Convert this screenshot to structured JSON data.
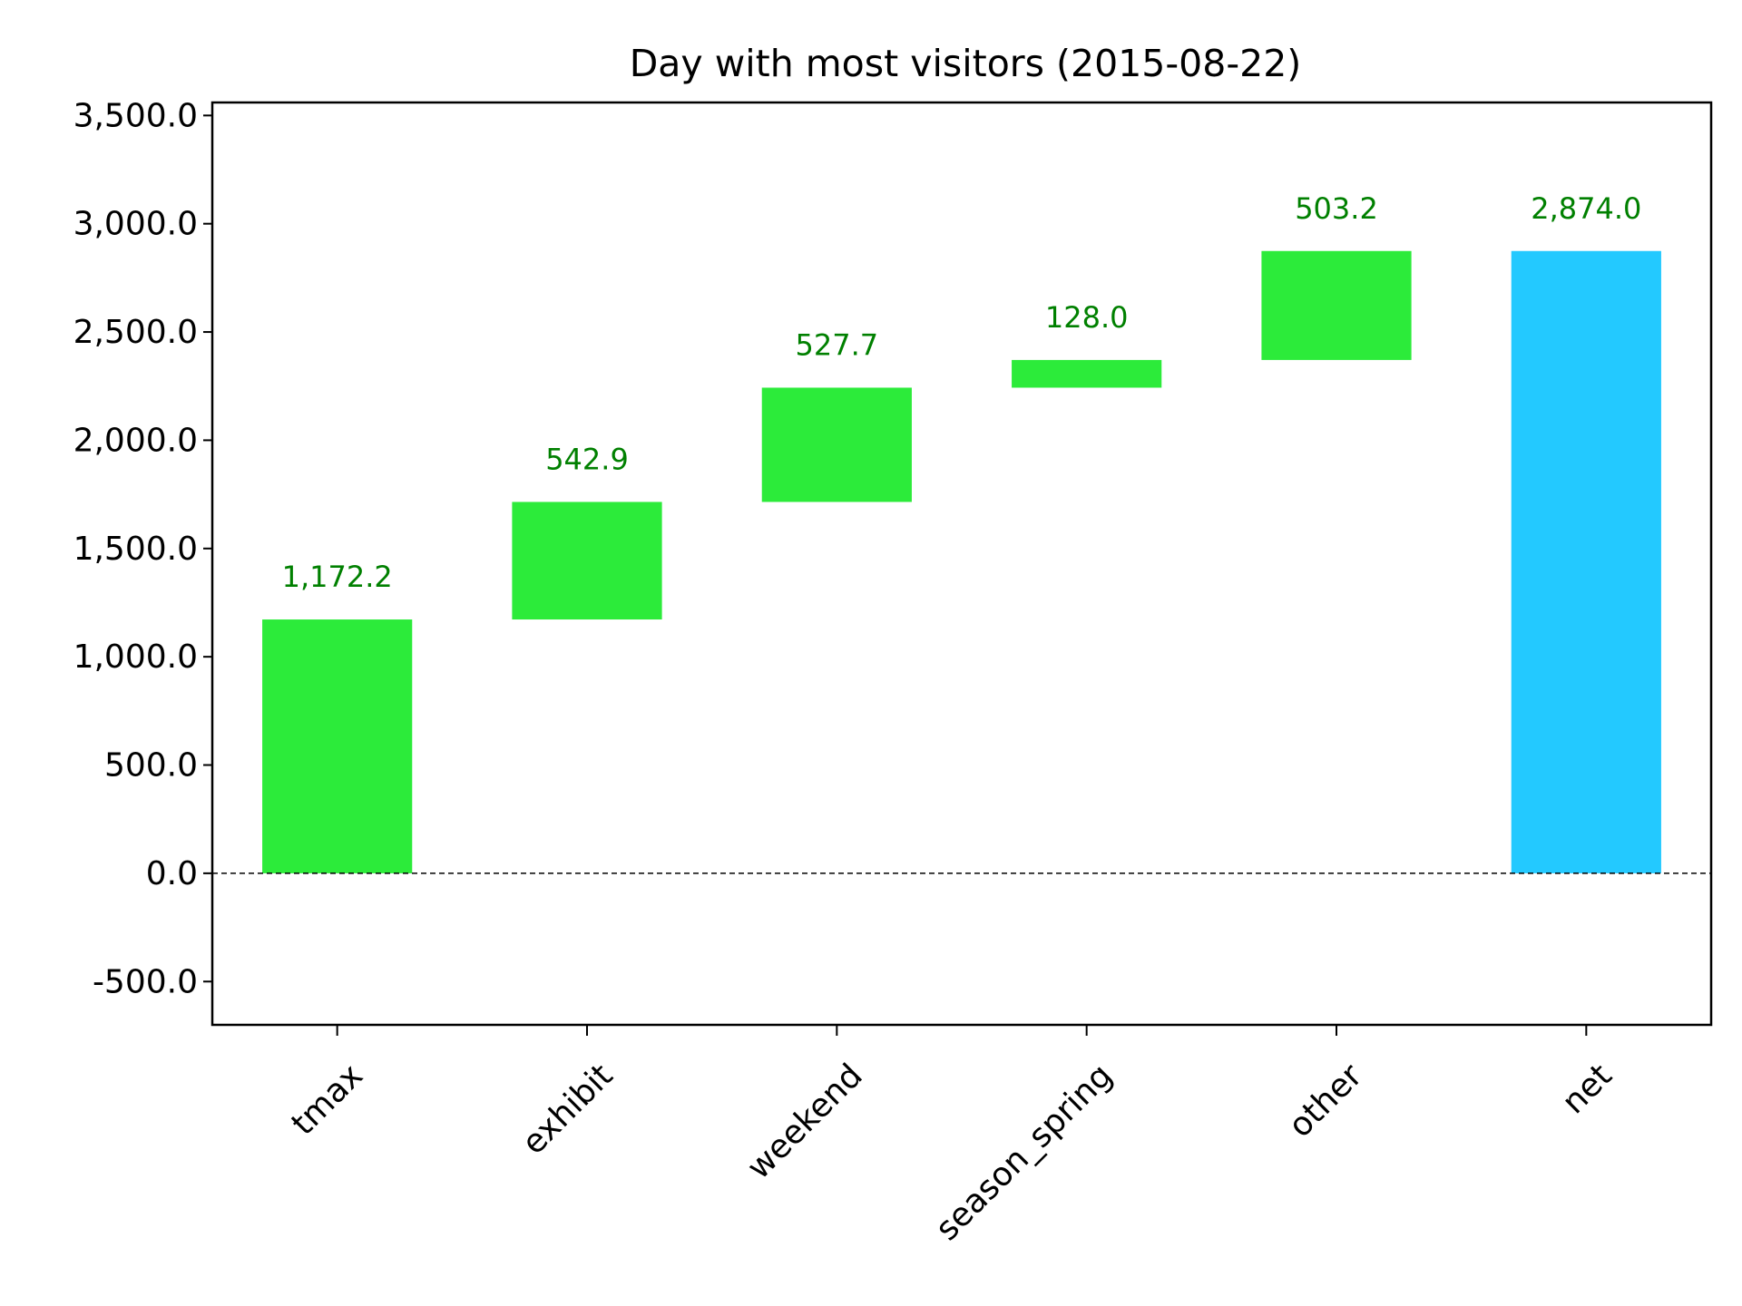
{
  "chart_data": {
    "type": "waterfall",
    "title": "Day with most visitors (2015-08-22)",
    "xlabel": "",
    "ylabel": "",
    "ylim": [
      -700,
      3560
    ],
    "yticks": [
      -500,
      0,
      500,
      1000,
      1500,
      2000,
      2500,
      3000,
      3500
    ],
    "ytick_labels": [
      "-500.0",
      "0.0",
      "500.0",
      "1,000.0",
      "1,500.0",
      "2,000.0",
      "2,500.0",
      "3,000.0",
      "3,500.0"
    ],
    "categories": [
      "tmax",
      "exhibit",
      "weekend",
      "season_spring",
      "other",
      "net"
    ],
    "values": [
      1172.2,
      542.9,
      527.7,
      128.0,
      503.2,
      2874.0
    ],
    "data_labels": [
      "1,172.2",
      "542.9",
      "527.7",
      "128.0",
      "503.2",
      "2,874.0"
    ],
    "total_index": 5,
    "baseline": 0,
    "grid": false,
    "legend": "none",
    "colors": {
      "increase": "#2ceb3a",
      "total": "#23c9ff",
      "label": "#008000",
      "baseline": "#000000"
    }
  }
}
